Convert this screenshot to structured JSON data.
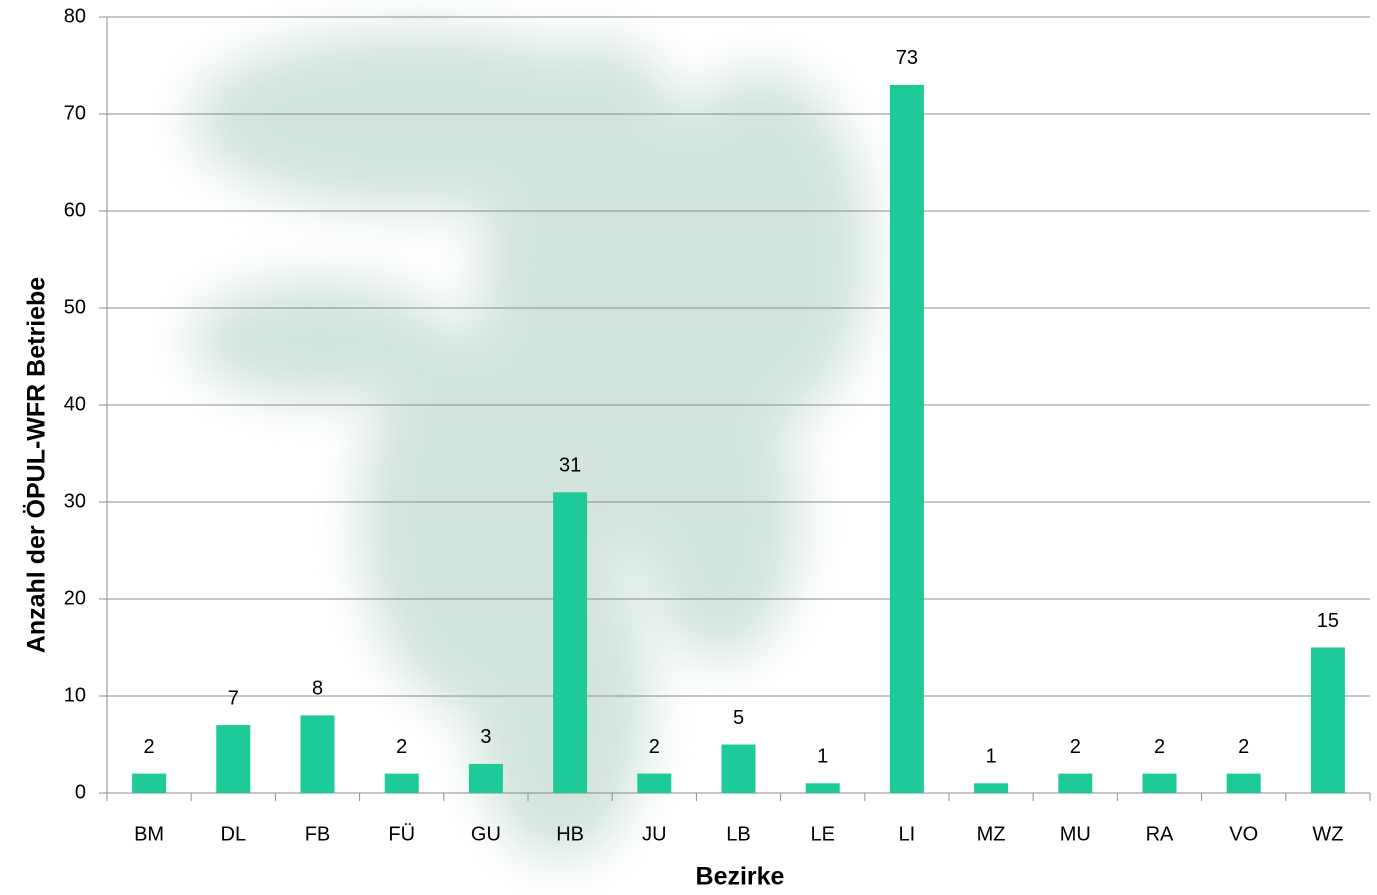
{
  "chart_data": {
    "type": "bar",
    "x_label": "Bezirke",
    "y_label": "Anzahl der ÖPUL-WFR Betriebe",
    "categories": [
      "BM",
      "DL",
      "FB",
      "FÜ",
      "GU",
      "HB",
      "JU",
      "LB",
      "LE",
      "LI",
      "MZ",
      "MU",
      "RA",
      "VO",
      "WZ"
    ],
    "values": [
      2,
      7,
      8,
      2,
      3,
      31,
      2,
      5,
      1,
      73,
      1,
      2,
      2,
      2,
      15
    ],
    "color": "#1ecb98",
    "ylim": [
      0,
      80
    ],
    "yticks": [
      0,
      10,
      20,
      30,
      40,
      50,
      60,
      70,
      80
    ],
    "grid": true
  }
}
